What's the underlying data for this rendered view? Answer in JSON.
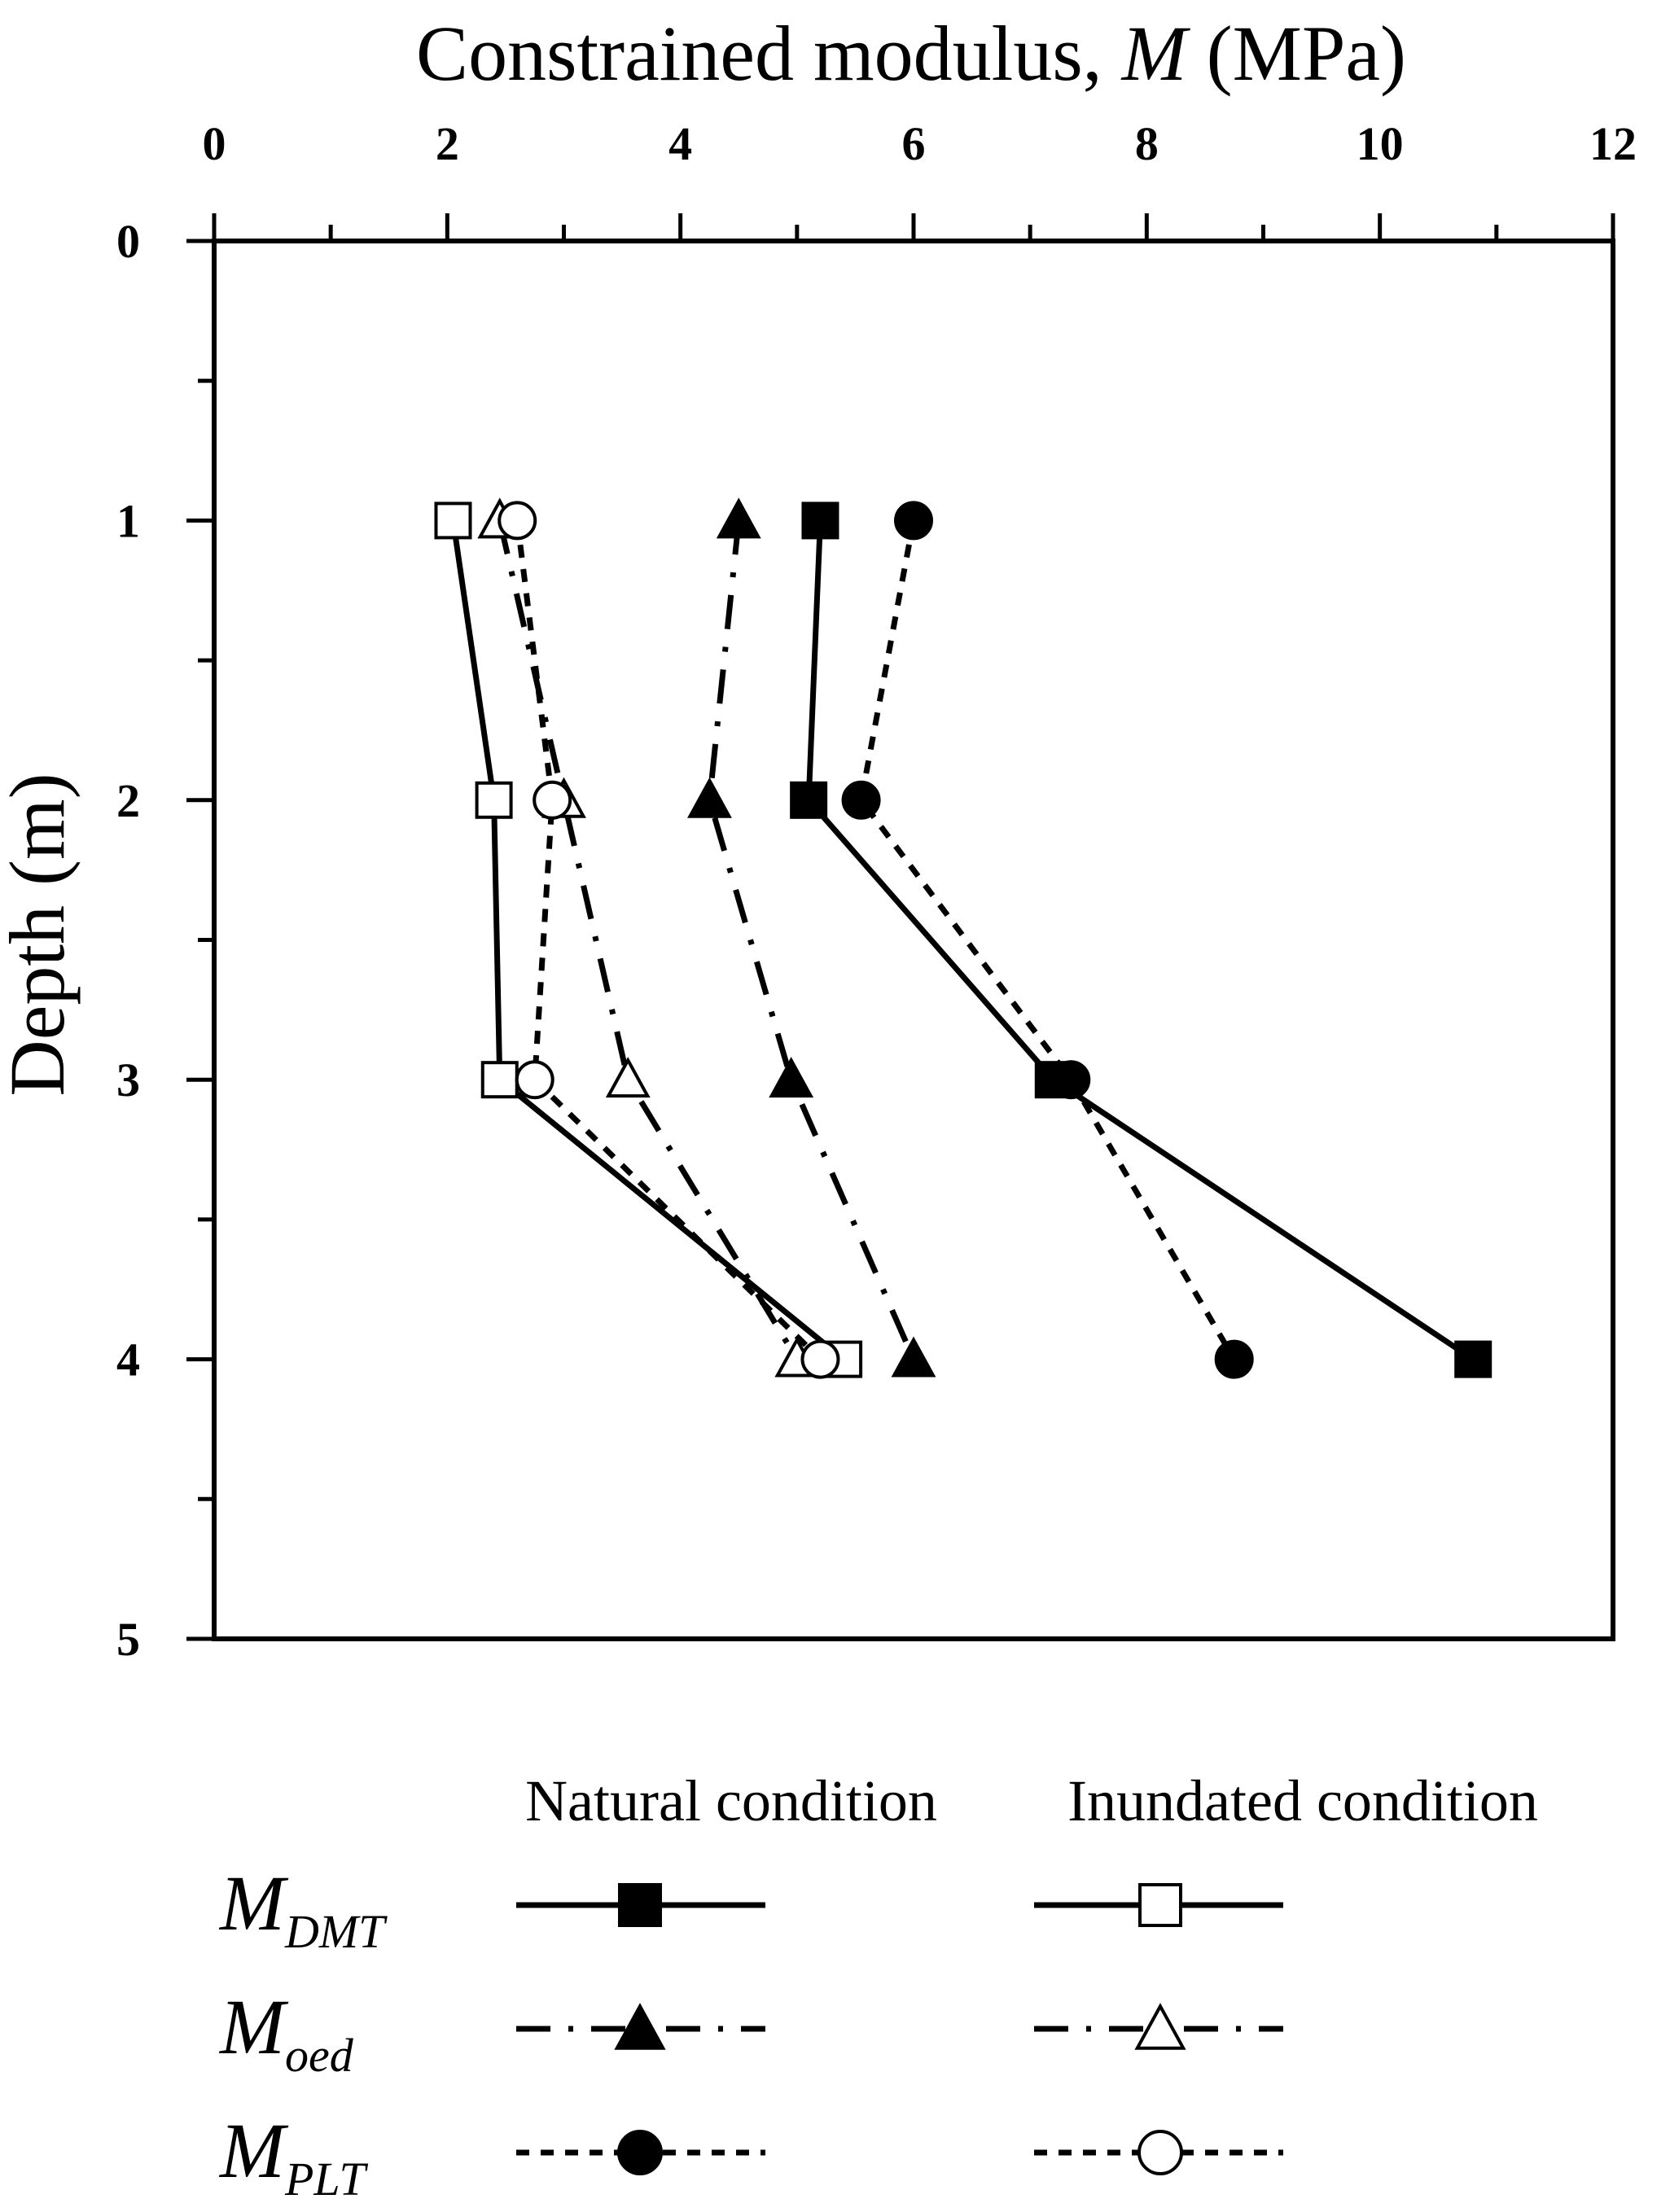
{
  "chart_data": {
    "type": "line",
    "title": "",
    "xlabel": {
      "prefix": "Constrained modulus, ",
      "italic": "M",
      "suffix": " (MPa)"
    },
    "ylabel": "Depth (m)",
    "xlim": [
      0,
      12
    ],
    "ylim": [
      0,
      5
    ],
    "y_inverted": true,
    "x_axis_position": "top",
    "xticks": [
      0,
      2,
      4,
      6,
      8,
      10,
      12
    ],
    "xticks_minor": [
      1,
      3,
      5,
      7,
      9,
      11
    ],
    "yticks": [
      0,
      1,
      2,
      3,
      4,
      5
    ],
    "yticks_minor": [
      0.5,
      1.5,
      2.5,
      3.5,
      4.5
    ],
    "grid": false,
    "series": [
      {
        "name": "M_DMT natural",
        "condition": "natural",
        "style": "solid",
        "marker": "square",
        "filled": true,
        "x": [
          5.2,
          5.1,
          7.2,
          10.8
        ],
        "depth": [
          1,
          2,
          3,
          4
        ]
      },
      {
        "name": "M_oed natural",
        "condition": "natural",
        "style": "dashdot",
        "marker": "triangle",
        "filled": true,
        "x": [
          4.5,
          4.25,
          4.95,
          6.0
        ],
        "depth": [
          1,
          2,
          3,
          4
        ]
      },
      {
        "name": "M_PLT natural",
        "condition": "natural",
        "style": "dotted",
        "marker": "circle",
        "filled": true,
        "x": [
          6.0,
          5.55,
          7.35,
          8.75
        ],
        "depth": [
          1,
          2,
          3,
          4
        ]
      },
      {
        "name": "M_DMT inundated",
        "condition": "inundated",
        "style": "solid",
        "marker": "square",
        "filled": false,
        "x": [
          2.05,
          2.4,
          2.45,
          5.4
        ],
        "depth": [
          1,
          2,
          3,
          4
        ]
      },
      {
        "name": "M_oed inundated",
        "condition": "inundated",
        "style": "dashdot",
        "marker": "triangle",
        "filled": false,
        "x": [
          2.45,
          3.0,
          3.55,
          5.0
        ],
        "depth": [
          1,
          2,
          3,
          4
        ]
      },
      {
        "name": "M_PLT inundated",
        "condition": "inundated",
        "style": "dotted",
        "marker": "circle",
        "filled": false,
        "x": [
          2.6,
          2.9,
          2.75,
          5.2
        ],
        "depth": [
          1,
          2,
          3,
          4
        ]
      }
    ],
    "legend": {
      "placement": "bottom",
      "headers": [
        "Natural condition",
        "Inundated condition"
      ],
      "rows": [
        {
          "symbol": "M",
          "subscript": "DMT",
          "style": "solid",
          "marker": "square"
        },
        {
          "symbol": "M",
          "subscript": "oed",
          "style": "dashdot",
          "marker": "triangle"
        },
        {
          "symbol": "M",
          "subscript": "PLT",
          "style": "dotted",
          "marker": "circle"
        }
      ]
    }
  }
}
